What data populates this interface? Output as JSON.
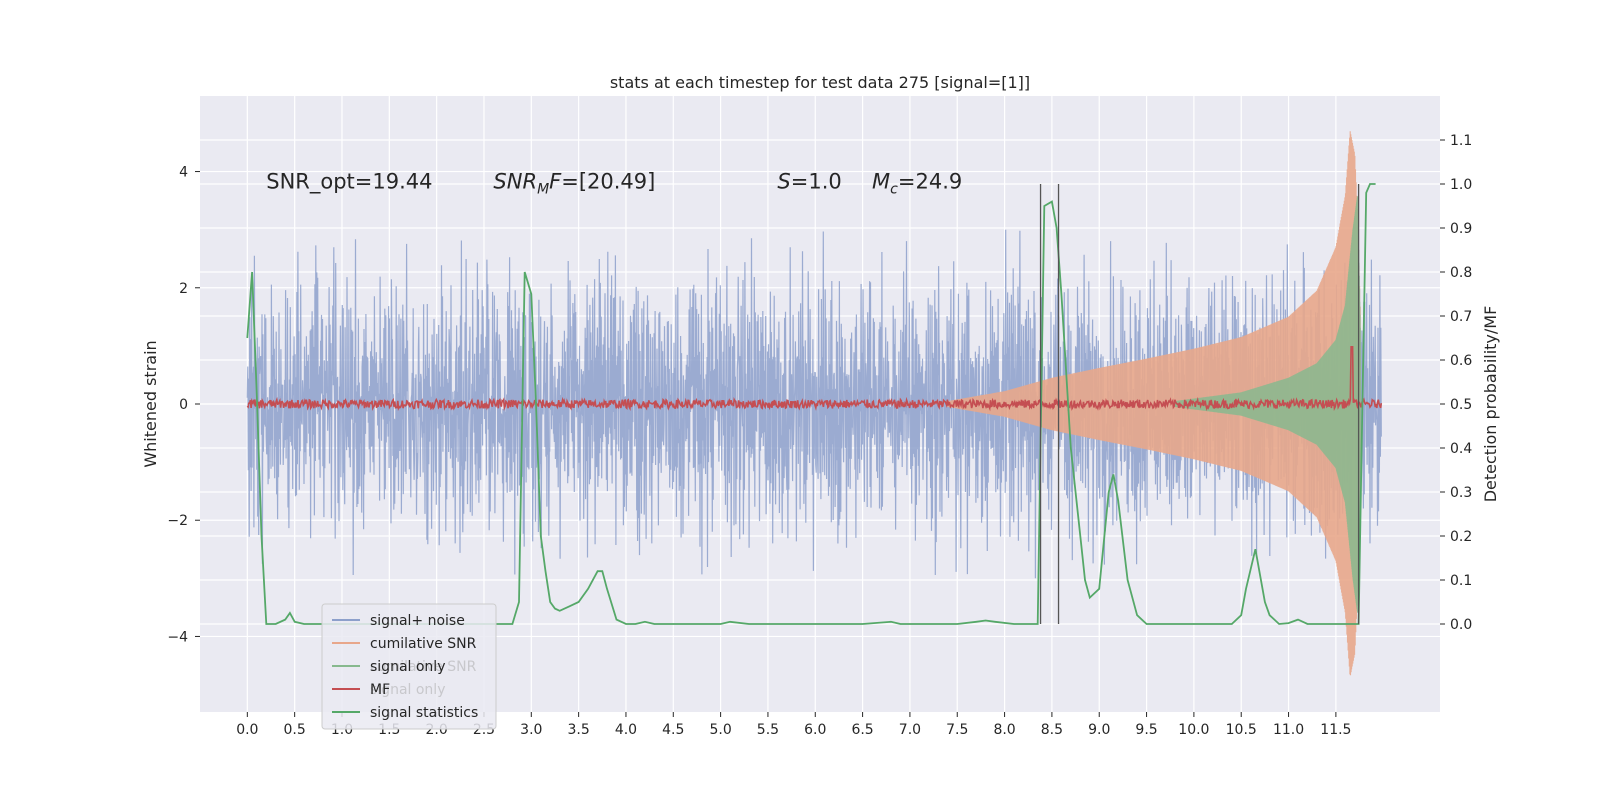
{
  "chart_data": {
    "type": "line",
    "title": "stats at each timestep for test data 275 [signal=[1]]",
    "xlabel": "",
    "ylabel_left": "Whitened strain",
    "ylabel_right": "Detection probability/MF",
    "xlim": [
      -0.5,
      12.6
    ],
    "ylim_left": [
      -5.3,
      5.3
    ],
    "ylim_right": [
      -0.2,
      1.2
    ],
    "grid": true,
    "x_ticks": [
      0.0,
      0.5,
      1.0,
      1.5,
      2.0,
      2.5,
      3.0,
      3.5,
      4.0,
      4.5,
      5.0,
      5.5,
      6.0,
      6.5,
      7.0,
      7.5,
      8.0,
      8.5,
      9.0,
      9.5,
      10.0,
      10.5,
      11.0,
      11.5
    ],
    "x_tick_labels": [
      "0.0",
      "0.5",
      "1.0",
      "1.5",
      "2.0",
      "2.5",
      "3.0",
      "3.5",
      "4.0",
      "4.5",
      "5.0",
      "5.5",
      "6.0",
      "6.5",
      "7.0",
      "7.5",
      "8.0",
      "8.5",
      "9.0",
      "9.5",
      "10.0",
      "10.5",
      "11.0",
      "11.5"
    ],
    "y_left_ticks": [
      -4,
      -2,
      0,
      2,
      4
    ],
    "y_left_tick_labels": [
      "−4",
      "−2",
      "0",
      "2",
      "4"
    ],
    "y_right_ticks": [
      0.0,
      0.1,
      0.2,
      0.3,
      0.4,
      0.5,
      0.6,
      0.7,
      0.8,
      0.9,
      1.0,
      1.1
    ],
    "y_right_tick_labels": [
      "0.0",
      "0.1",
      "0.2",
      "0.3",
      "0.4",
      "0.5",
      "0.6",
      "0.7",
      "0.8",
      "0.9",
      "1.0",
      "1.1"
    ],
    "annotations": [
      {
        "text": "SNR_opt=19.44",
        "x": 0.2,
        "y": 3.85
      },
      {
        "text": "SNR_MF=[20.49]",
        "x": 2.6,
        "y": 3.85
      },
      {
        "text": "S=1.0",
        "x": 5.6,
        "y": 3.85
      },
      {
        "text": "M_c=24.9",
        "x": 6.6,
        "y": 3.85
      }
    ],
    "vertical_lines_x": [
      8.38,
      8.57,
      11.74
    ],
    "vertical_lines_y_range": [
      0.0,
      1.0
    ],
    "legend": {
      "location": "lower-left",
      "entries": [
        {
          "label": "signal+ noise",
          "color": "#8da0cb"
        },
        {
          "label": "cumilative SNR",
          "color": "#e8a78b"
        },
        {
          "label": "signal only",
          "color": "#87b98e"
        },
        {
          "label": "MF",
          "color": "#c44e52"
        },
        {
          "label": "signal statistics",
          "color": "#55a868"
        }
      ],
      "ghost_entries": [
        "cumilative SNR",
        "signal only"
      ]
    },
    "series": [
      {
        "name": "signal+ noise",
        "axis": "left",
        "color": "#8da0cb",
        "style": "dense-noise",
        "x_range": [
          0.0,
          11.98
        ],
        "typical_amplitude": 1.0,
        "max_value": 3.0,
        "min_value": -3.0
      },
      {
        "name": "cumilative SNR",
        "axis": "left",
        "color": "#e8a78b",
        "style": "chirp-envelope",
        "x_range": [
          7.4,
          11.76
        ],
        "envelope_x": [
          7.4,
          8.0,
          8.5,
          9.0,
          9.5,
          10.0,
          10.5,
          11.0,
          11.3,
          11.5,
          11.6,
          11.65,
          11.7,
          11.73,
          11.76
        ],
        "envelope_y": [
          0.05,
          0.22,
          0.45,
          0.62,
          0.78,
          0.95,
          1.15,
          1.5,
          1.95,
          2.7,
          3.6,
          4.7,
          4.3,
          3.2,
          1.5
        ]
      },
      {
        "name": "signal only",
        "axis": "left",
        "color": "#87b98e",
        "style": "chirp-envelope",
        "x_range": [
          9.8,
          11.76
        ],
        "envelope_x": [
          9.8,
          10.5,
          11.0,
          11.3,
          11.5,
          11.6,
          11.68,
          11.73,
          11.76
        ],
        "envelope_y": [
          0.05,
          0.2,
          0.45,
          0.7,
          1.1,
          1.7,
          3.0,
          3.6,
          1.2
        ]
      },
      {
        "name": "MF",
        "axis": "right",
        "color": "#c44e52",
        "style": "noisy-line",
        "baseline": 0.5,
        "x_range": [
          0.0,
          11.98
        ],
        "spike_x": 11.67,
        "spike_value": 0.63
      },
      {
        "name": "signal statistics",
        "axis": "right",
        "color": "#55a868",
        "x": [
          0.0,
          0.05,
          0.1,
          0.15,
          0.2,
          0.25,
          0.3,
          0.4,
          0.45,
          0.5,
          0.6,
          2.8,
          2.87,
          2.93,
          3.0,
          3.05,
          3.1,
          3.15,
          3.2,
          3.25,
          3.3,
          3.4,
          3.5,
          3.6,
          3.7,
          3.75,
          3.8,
          3.9,
          4.0,
          4.1,
          4.2,
          4.3,
          4.5,
          5.0,
          5.1,
          5.3,
          6.5,
          6.8,
          6.9,
          7.5,
          7.7,
          7.8,
          7.9,
          8.1,
          8.35,
          8.42,
          8.5,
          8.55,
          8.6,
          8.7,
          8.8,
          8.85,
          8.9,
          9.0,
          9.1,
          9.15,
          9.2,
          9.3,
          9.4,
          9.5,
          10.0,
          10.4,
          10.5,
          10.55,
          10.65,
          10.75,
          10.8,
          10.9,
          11.0,
          11.1,
          11.2,
          11.35,
          11.5,
          11.74,
          11.78,
          11.82,
          11.86,
          11.92
        ],
        "y": [
          0.65,
          0.8,
          0.52,
          0.2,
          0.0,
          0.0,
          0.0,
          0.01,
          0.025,
          0.005,
          0.0,
          0.0,
          0.05,
          0.8,
          0.75,
          0.5,
          0.2,
          0.12,
          0.05,
          0.035,
          0.03,
          0.04,
          0.05,
          0.08,
          0.12,
          0.12,
          0.08,
          0.01,
          0.0,
          0.0,
          0.005,
          0.0,
          0.0,
          0.0,
          0.005,
          0.0,
          0.0,
          0.005,
          0.0,
          0.0,
          0.005,
          0.008,
          0.005,
          0.0,
          0.0,
          0.95,
          0.96,
          0.9,
          0.75,
          0.4,
          0.2,
          0.1,
          0.06,
          0.08,
          0.3,
          0.34,
          0.28,
          0.1,
          0.02,
          0.0,
          0.0,
          0.0,
          0.02,
          0.08,
          0.17,
          0.05,
          0.02,
          0.0,
          0.002,
          0.01,
          0.0,
          0.0,
          0.0,
          0.0,
          0.5,
          0.98,
          1.0,
          1.0
        ]
      }
    ]
  }
}
